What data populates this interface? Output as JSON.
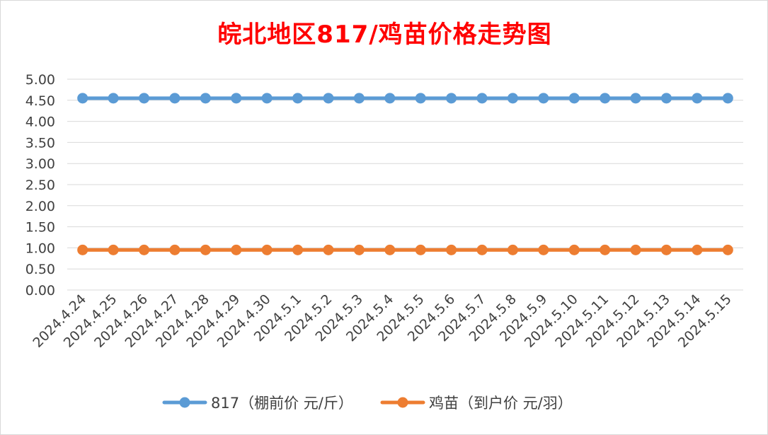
{
  "chart_data": {
    "type": "line",
    "title": "皖北地区817/鸡苗价格走势图",
    "title_color": "#ff0000",
    "xlabel": "",
    "ylabel": "",
    "ylim": [
      0,
      5
    ],
    "y_ticks": [
      "0.00",
      "0.50",
      "1.00",
      "1.50",
      "2.00",
      "2.50",
      "3.00",
      "3.50",
      "4.00",
      "4.50",
      "5.00"
    ],
    "grid": true,
    "legend_position": "bottom",
    "categories": [
      "2024.4.24",
      "2024.4.25",
      "2024.4.26",
      "2024.4.27",
      "2024.4.28",
      "2024.4.29",
      "2024.4.30",
      "2024.5.1",
      "2024.5.2",
      "2024.5.3",
      "2024.5.4",
      "2024.5.5",
      "2024.5.6",
      "2024.5.7",
      "2024.5.8",
      "2024.5.9",
      "2024.5.10",
      "2024.5.11",
      "2024.5.12",
      "2024.5.13",
      "2024.5.14",
      "2024.5.15"
    ],
    "series": [
      {
        "name": "817（棚前价 元/斤）",
        "color": "#5b9bd5",
        "values": [
          4.55,
          4.55,
          4.55,
          4.55,
          4.55,
          4.55,
          4.55,
          4.55,
          4.55,
          4.55,
          4.55,
          4.55,
          4.55,
          4.55,
          4.55,
          4.55,
          4.55,
          4.55,
          4.55,
          4.55,
          4.55,
          4.55
        ]
      },
      {
        "name": "鸡苗（到户价 元/羽）",
        "color": "#ed7d31",
        "values": [
          0.95,
          0.95,
          0.95,
          0.95,
          0.95,
          0.95,
          0.95,
          0.95,
          0.95,
          0.95,
          0.95,
          0.95,
          0.95,
          0.95,
          0.95,
          0.95,
          0.95,
          0.95,
          0.95,
          0.95,
          0.95,
          0.95
        ]
      }
    ]
  }
}
